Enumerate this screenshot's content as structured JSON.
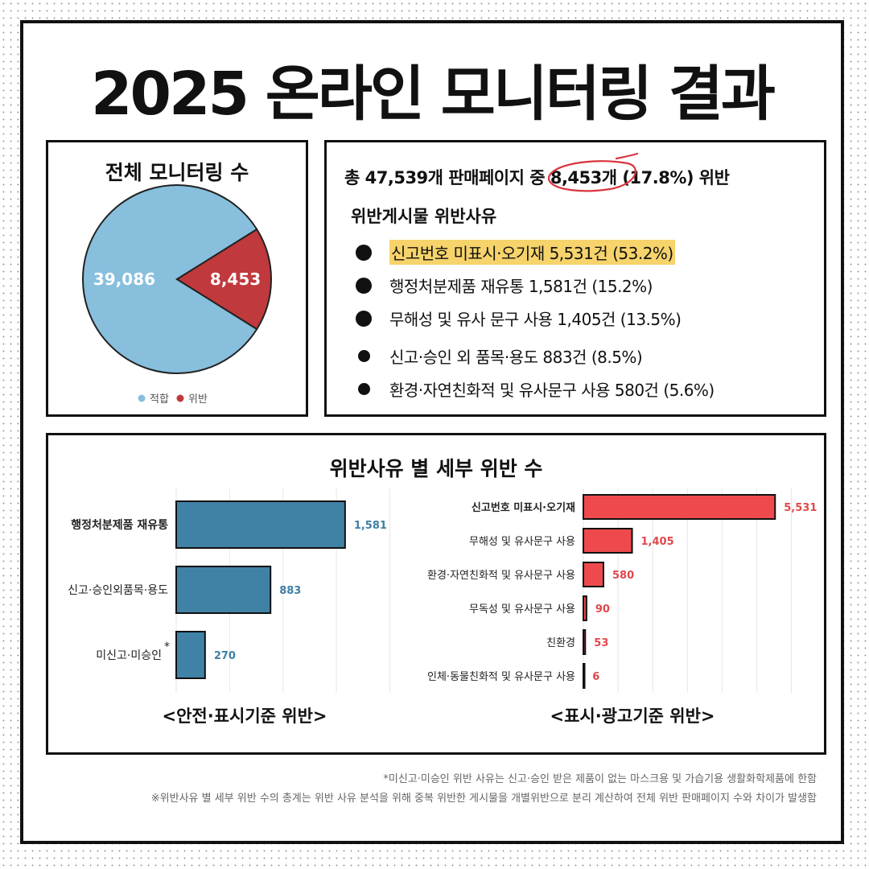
{
  "title": "2025 온라인 모니터링 결과",
  "pie_box": {
    "title": "전체 모니터링 수"
  },
  "summary": {
    "prefix": "총 47,539개 판매페이지 중 ",
    "circled": "8,453개",
    "suffix": " (17.8%) 위반",
    "subtitle": "위반게시물 위반사유",
    "reasons": [
      {
        "text": "신고번호 미표시·오기재 5,531건 (53.2%)",
        "highlight": true,
        "dot": "big"
      },
      {
        "text": "행정처분제품 재유통 1,581건 (15.2%)",
        "highlight": false,
        "dot": "big"
      },
      {
        "text": "무해성 및 유사 문구 사용 1,405건 (13.5%)",
        "highlight": false,
        "dot": "big"
      },
      {
        "text": "신고·승인 외 품목·용도 883건 (8.5%)",
        "highlight": false,
        "dot": "small"
      },
      {
        "text": "환경·자연친화적 및 유사문구 사용 580건 (5.6%)",
        "highlight": false,
        "dot": "small"
      }
    ],
    "highlight_color": "#f6d36b",
    "circle_color": "#d9343d"
  },
  "bars_box": {
    "title": "위반사유 별 세부 위반 수"
  },
  "chart_data": [
    {
      "type": "pie",
      "title": "전체 모니터링 수",
      "labels": [
        "적합",
        "위반"
      ],
      "values": [
        39086,
        8453
      ],
      "value_labels": [
        "39,086",
        "8,453"
      ],
      "colors": [
        "#87bfdd",
        "#c0393d"
      ],
      "legend_position": "bottom"
    },
    {
      "type": "bar",
      "orientation": "horizontal",
      "xlabel": "<안전·표시기준 위반>",
      "categories": [
        "행정처분제품 재유통",
        "신고·승인외품목·용도",
        "미신고·미승인"
      ],
      "category_marks": [
        "",
        "",
        "*"
      ],
      "bold_categories": [
        true,
        false,
        false
      ],
      "values": [
        1581,
        883,
        270
      ],
      "value_labels": [
        "1,581",
        "883",
        "270"
      ],
      "color": "#3f82a6",
      "xlim": [
        0,
        2200
      ],
      "grid": true
    },
    {
      "type": "bar",
      "orientation": "horizontal",
      "xlabel": "<표시·광고기준 위반>",
      "categories": [
        "신고번호 미표시·오기재",
        "무해성 및 유사문구 사용",
        "환경·자연친화적 및 유사문구 사용",
        "무독성 및 유사문구 사용",
        "친환경",
        "인체·동물친화적 및 유사문구 사용"
      ],
      "bold_categories": [
        true,
        false,
        false,
        false,
        false,
        false
      ],
      "values": [
        5531,
        1405,
        580,
        90,
        53,
        6
      ],
      "value_labels": [
        "5,531",
        "1,405",
        "580",
        "90",
        "53",
        "6"
      ],
      "color": "#ee4a4d",
      "value_label_color": "#e0484b",
      "xlim": [
        0,
        6500
      ],
      "grid": true
    }
  ],
  "footnotes": [
    "*미신고·미승인 위반 사유는 신고·승인 받은 제품이 없는 마스크용 및 가습기용 생활화학제품에 한함",
    "※위반사유 별 세부 위반 수의 총계는 위반 사유 분석을 위해 중복 위반한 게시물을 개별위반으로 분리 계산하여 전체 위반 판매페이지 수와 차이가 발생함"
  ]
}
